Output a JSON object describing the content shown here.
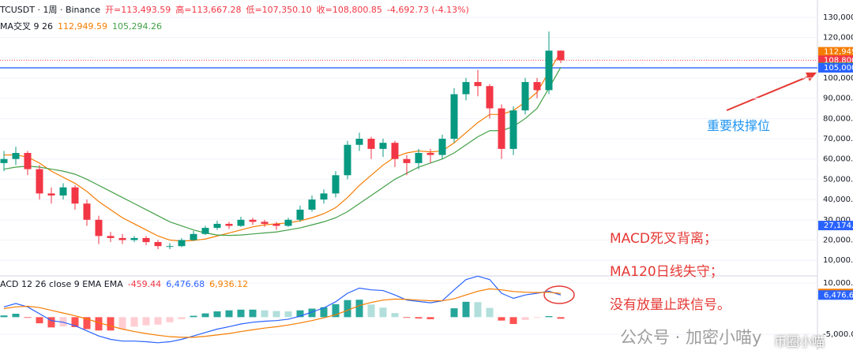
{
  "chart_data": [
    {
      "type": "candlestick",
      "title": "TCUSDT · 1周 · Binance",
      "legend": [
        "开=113,493.59",
        "高=113,667.28",
        "低=107,350.10",
        "收=108,800.85",
        "-4,692.73 (-4.13%)"
      ],
      "indicator_label": "MA交叉 9 26",
      "indicator_values": [
        "112,949.59",
        "105,294.26"
      ],
      "up_color": "#089981",
      "down_color": "#f23645",
      "open": [
        58000,
        60000,
        63000,
        55000,
        43000,
        42000,
        46000,
        38000,
        30000,
        22000,
        21000,
        20000,
        21000,
        19000,
        17000,
        17000,
        20000,
        23000,
        26000,
        28000,
        27000,
        30000,
        29000,
        28000,
        27000,
        30000,
        35000,
        40000,
        43000,
        52000,
        67000,
        70000,
        65000,
        68000,
        60000,
        58000,
        63000,
        62000,
        70000,
        92000,
        98000,
        96000,
        85000,
        65000,
        84000,
        98000,
        94000,
        113493.59
      ],
      "high": [
        64000,
        66000,
        64000,
        57000,
        46000,
        48000,
        47000,
        40000,
        32000,
        24000,
        23000,
        22000,
        22000,
        20000,
        18500,
        21000,
        24500,
        27000,
        29500,
        29000,
        31500,
        31000,
        30000,
        29000,
        31000,
        37000,
        42000,
        45000,
        54000,
        69000,
        73000,
        71000,
        70000,
        69000,
        62000,
        65000,
        65000,
        72000,
        95000,
        100000,
        104000,
        97000,
        87000,
        86000,
        100000,
        100000,
        123000,
        113667.28
      ],
      "low": [
        54000,
        57000,
        52000,
        40000,
        38000,
        40000,
        35000,
        27000,
        18000,
        19000,
        18000,
        19000,
        17500,
        15500,
        15500,
        16500,
        19500,
        22500,
        25000,
        25500,
        26500,
        27500,
        26500,
        25000,
        26500,
        29000,
        34000,
        38000,
        41000,
        50000,
        64000,
        60000,
        61000,
        56000,
        52000,
        55000,
        58000,
        60000,
        68000,
        89000,
        91000,
        80000,
        60000,
        62000,
        82000,
        90000,
        92000,
        107350.1
      ],
      "close": [
        60000,
        63000,
        55000,
        43000,
        42000,
        46000,
        38000,
        30000,
        22000,
        21000,
        20000,
        21000,
        19000,
        17000,
        17000,
        20000,
        23000,
        26000,
        28000,
        27000,
        30000,
        29000,
        28000,
        27000,
        30000,
        35000,
        40000,
        43000,
        52000,
        67000,
        70000,
        65000,
        68000,
        60000,
        58000,
        63000,
        62000,
        70000,
        92000,
        98000,
        96000,
        85000,
        65000,
        84000,
        98000,
        94000,
        113493.59,
        108800.85
      ],
      "series": [
        {
          "color": "#f57c00",
          "values": [
            62000,
            62000,
            61000,
            58000,
            54000,
            51000,
            48000,
            44000,
            39000,
            35000,
            31000,
            28000,
            25000,
            22000,
            20000,
            19500,
            19800,
            20500,
            22000,
            23500,
            25000,
            26500,
            27500,
            28000,
            28500,
            29500,
            31000,
            33000,
            36000,
            41000,
            47000,
            52000,
            57000,
            61000,
            63000,
            64000,
            63500,
            64000,
            68000,
            73000,
            78000,
            82000,
            82000,
            84000,
            88000,
            93000,
            103000,
            112949.59
          ]
        },
        {
          "color": "#43a047",
          "values": [
            55000,
            56000,
            56500,
            56000,
            55000,
            54000,
            52500,
            50000,
            47000,
            44000,
            41000,
            38000,
            35000,
            32000,
            29000,
            27000,
            25000,
            23500,
            22500,
            22300,
            22500,
            23000,
            23500,
            24000,
            25000,
            26000,
            27500,
            29000,
            31000,
            34000,
            38000,
            42000,
            46000,
            50000,
            53000,
            56000,
            58000,
            60000,
            63000,
            67000,
            71000,
            74000,
            74000,
            76000,
            80000,
            85000,
            95000,
            105294.26
          ]
        }
      ],
      "support_line": {
        "value": 105000,
        "color": "#2962ff"
      },
      "ylim": [
        2300,
        138500
      ],
      "yticks": [
        {
          "value": 130000,
          "label": "130,000.00"
        },
        {
          "value": 120000,
          "label": "120,000.00"
        },
        {
          "value": 110000,
          "label": "110,000.00"
        },
        {
          "value": 100000,
          "label": "100,000.00"
        },
        {
          "value": 90000,
          "label": "90,000.00"
        },
        {
          "value": 80000,
          "label": "80,000.00"
        },
        {
          "value": 70000,
          "label": "70,000.00"
        },
        {
          "value": 60000,
          "label": "60,000.00"
        },
        {
          "value": 50000,
          "label": "50,000.00"
        },
        {
          "value": 40000,
          "label": "40,000.00"
        },
        {
          "value": 30000,
          "label": "30,000.00"
        },
        {
          "value": 20000,
          "label": "20,000.00"
        },
        {
          "value": 10000,
          "label": "10,000.00"
        }
      ],
      "price_labels": [
        {
          "value": 112949.59,
          "label": "112,949.",
          "color": "#f57c00"
        },
        {
          "value": 108800.85,
          "label": "108,800.",
          "color": "#f23645"
        },
        {
          "value": 105294.26,
          "label": "105,294.",
          "color": "#43a047"
        },
        {
          "value": 105000,
          "label": "105,000.",
          "color": "#2962ff"
        },
        {
          "value": 27174.2,
          "label": "27,174.2",
          "color": "#2962ff"
        }
      ],
      "annotations": [
        "重要枝撑位",
        "MACD死叉背离；",
        "MA120日线失守；",
        "没有放量止跌信号。"
      ],
      "watermark": [
        "公众号 · 加密小喵y",
        "币圈小喵"
      ],
      "grid": true
    },
    {
      "type": "macd",
      "title": "ACD 12 26 close 9 EMA EMA",
      "legend": [
        {
          "text": "-459.44",
          "color": "#f23645"
        },
        {
          "text": "6,476.68",
          "color": "#2962ff"
        },
        {
          "text": "6,936.12",
          "color": "#f57c00"
        }
      ],
      "series": [
        {
          "color": "#2962ff",
          "values": [
            3000,
            4000,
            3000,
            1000,
            -1000,
            -1500,
            -2500,
            -4000,
            -5500,
            -6500,
            -7000,
            -7000,
            -7200,
            -7500,
            -7200,
            -6500,
            -5500,
            -4500,
            -3500,
            -2800,
            -2000,
            -1500,
            -1200,
            -1000,
            -600,
            300,
            1500,
            2700,
            4500,
            7000,
            8500,
            8000,
            7800,
            6500,
            5000,
            4600,
            4200,
            4800,
            8000,
            11000,
            12000,
            11000,
            7000,
            5500,
            6500,
            7000,
            7600,
            6476.68
          ]
        },
        {
          "color": "#f57c00",
          "values": [
            2500,
            3000,
            3200,
            2800,
            2000,
            1200,
            400,
            -500,
            -1600,
            -2600,
            -3500,
            -4200,
            -4800,
            -5300,
            -5700,
            -5900,
            -5900,
            -5600,
            -5200,
            -4800,
            -4200,
            -3700,
            -3200,
            -2800,
            -2300,
            -1700,
            -1000,
            -200,
            700,
            2000,
            3400,
            4300,
            5000,
            5300,
            5200,
            5000,
            4800,
            4800,
            5400,
            6500,
            7600,
            8300,
            8000,
            7500,
            7300,
            7200,
            7300,
            6936.12
          ]
        }
      ],
      "histogram": [
        500,
        1000,
        -200,
        -1800,
        -3000,
        -2700,
        -2900,
        -3500,
        -3900,
        -3900,
        -3500,
        -2800,
        -2400,
        -2200,
        -1500,
        -600,
        400,
        1100,
        1700,
        2000,
        2200,
        2200,
        2000,
        1800,
        1700,
        2000,
        2500,
        2900,
        3800,
        5000,
        5100,
        3700,
        2800,
        1200,
        -200,
        -400,
        -600,
        0,
        2600,
        4500,
        4400,
        2700,
        -1000,
        -2000,
        -800,
        -200,
        300,
        -459.44
      ],
      "ylim": [
        -9615,
        12077
      ],
      "yticks": [
        {
          "value": 10000,
          "label": "10,000.00"
        },
        {
          "value": -5000,
          "label": "-5,000.00"
        }
      ],
      "price_labels": [
        {
          "value": 6936.12,
          "label": "6,936.12",
          "color": "#f57c00"
        },
        {
          "value": 6476.68,
          "label": "6,476.68",
          "color": "#2962ff"
        }
      ]
    }
  ]
}
